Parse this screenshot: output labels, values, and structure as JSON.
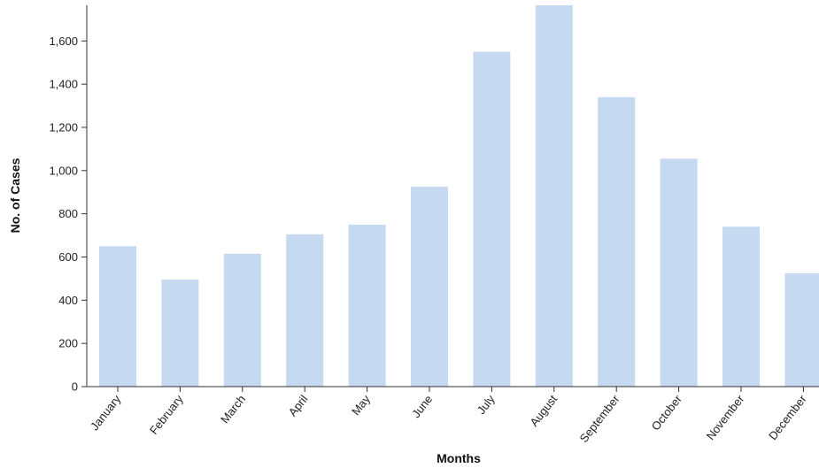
{
  "chart_data": {
    "type": "bar",
    "categories": [
      "January",
      "February",
      "March",
      "April",
      "May",
      "June",
      "July",
      "August",
      "September",
      "October",
      "November",
      "December"
    ],
    "values": [
      650,
      495,
      615,
      705,
      750,
      925,
      1550,
      1765,
      1340,
      1055,
      740,
      525
    ],
    "xlabel": "Months",
    "ylabel": "No. of Cases",
    "ylim": [
      0,
      1765
    ],
    "yticks": [
      0,
      200,
      400,
      600,
      800,
      1000,
      1200,
      1400,
      1600
    ],
    "ytick_labels": [
      "0",
      "200",
      "400",
      "600",
      "800",
      "1,000",
      "1,200",
      "1,400",
      "1,600"
    ],
    "bar_color": "#c5d9f1",
    "grid": false,
    "legend": "none"
  }
}
